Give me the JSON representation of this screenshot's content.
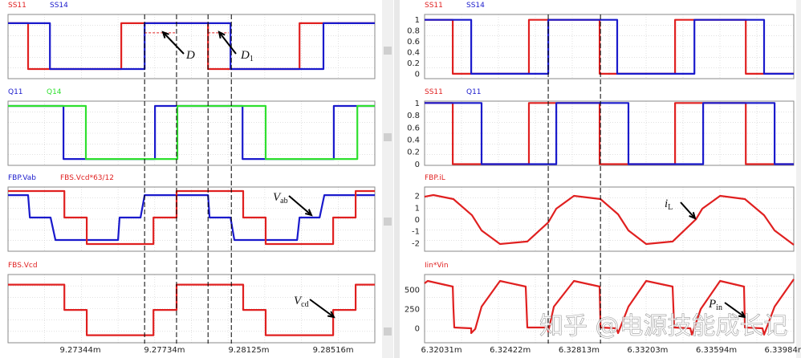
{
  "colors": {
    "red": "#e02020",
    "blue": "#1a1acc",
    "green": "#2fe02f",
    "grid": "#cfcfcf",
    "frame": "#8a8a8a"
  },
  "watermark": "知乎 @电源技能成长记",
  "chart_data": [
    {
      "side": "left",
      "type": "line",
      "xlim": [
        9.27009,
        9.28709
      ],
      "xticks": [
        9.27344,
        9.27734,
        9.28125,
        9.28516
      ],
      "xtick_labels": [
        "9.27344m",
        "9.27734m",
        "9.28125m",
        "9.28516m"
      ],
      "cursors": [
        9.27642,
        9.2779,
        9.27936,
        9.28044
      ],
      "panels": [
        {
          "ylim": [
            -0.21,
            1.19
          ],
          "yticks": [],
          "series": [
            {
              "name": "SS11",
              "color": "red",
              "step": true,
              "points": [
                [
                  9.27009,
                  1
                ],
                [
                  9.27102,
                  0
                ],
                [
                  9.27534,
                  1
                ],
                [
                  9.27936,
                  0
                ],
                [
                  9.2836,
                  1
                ]
              ]
            },
            {
              "name": "SS14",
              "color": "blue",
              "step": true,
              "points": [
                [
                  9.27009,
                  1
                ],
                [
                  9.27203,
                  0
                ],
                [
                  9.27642,
                  1
                ],
                [
                  9.2804,
                  0
                ],
                [
                  9.28471,
                  1
                ]
              ]
            }
          ],
          "dashed": [
            {
              "color": "red",
              "points": [
                [
                  9.27642,
                  0.79
                ],
                [
                  9.27783,
                  0.79
                ]
              ]
            },
            {
              "color": "red",
              "points": [
                [
                  9.27936,
                  0.79
                ],
                [
                  9.28032,
                  0.79
                ]
              ]
            }
          ],
          "annotations": [
            {
              "text": "D",
              "sub": ""
            },
            {
              "text": "D",
              "sub": "1"
            }
          ]
        },
        {
          "ylim": [
            -0.12,
            1.09
          ],
          "yticks": [],
          "series": [
            {
              "name": "Q11",
              "color": "blue",
              "step": true,
              "points": [
                [
                  9.27009,
                  1
                ],
                [
                  9.27266,
                  0
                ],
                [
                  9.2769,
                  1
                ],
                [
                  9.28096,
                  0
                ],
                [
                  9.28519,
                  1
                ]
              ]
            },
            {
              "name": "Q14",
              "color": "green",
              "step": true,
              "points": [
                [
                  9.27009,
                  1
                ],
                [
                  9.2737,
                  0
                ],
                [
                  9.27794,
                  1
                ],
                [
                  9.28203,
                  0
                ],
                [
                  9.28628,
                  1
                ]
              ]
            }
          ],
          "annotations": []
        },
        {
          "ylim": [
            -1.5,
            1.36
          ],
          "yticks": [],
          "series": [
            {
              "name": "FBP.Vab",
              "color": "blue",
              "step": false,
              "points": [
                [
                  9.27009,
                  1
                ],
                [
                  9.27102,
                  1
                ],
                [
                  9.2711,
                  0
                ],
                [
                  9.27206,
                  0
                ],
                [
                  9.27229,
                  -1
                ],
                [
                  9.27519,
                  -1
                ],
                [
                  9.27526,
                  0
                ],
                [
                  9.27623,
                  0
                ],
                [
                  9.27642,
                  1
                ],
                [
                  9.27936,
                  1
                ],
                [
                  9.27943,
                  0
                ],
                [
                  9.2804,
                  0
                ],
                [
                  9.28058,
                  -1
                ],
                [
                  9.28349,
                  -1
                ],
                [
                  9.2836,
                  0
                ],
                [
                  9.28453,
                  0
                ],
                [
                  9.28475,
                  1
                ],
                [
                  9.28709,
                  1
                ]
              ]
            },
            {
              "name": "FBS.Vcd*63/12",
              "color": "red",
              "step": true,
              "points": [
                [
                  9.27009,
                  1.18
                ],
                [
                  9.2727,
                  0
                ],
                [
                  9.27374,
                  -1.18
                ],
                [
                  9.27683,
                  0
                ],
                [
                  9.2779,
                  1.18
                ],
                [
                  9.28099,
                  0
                ],
                [
                  9.28203,
                  -1.18
                ],
                [
                  9.28516,
                  0
                ],
                [
                  9.2862,
                  1.18
                ]
              ]
            }
          ],
          "annotations": [
            {
              "text": "V",
              "sub": "ab"
            }
          ]
        },
        {
          "ylim": [
            -1.3,
            1.4
          ],
          "yticks": [],
          "series": [
            {
              "name": "FBS.Vcd",
              "color": "red",
              "step": true,
              "points": [
                [
                  9.27009,
                  1
                ],
                [
                  9.2727,
                  0
                ],
                [
                  9.27374,
                  -1
                ],
                [
                  9.27683,
                  0
                ],
                [
                  9.2779,
                  1
                ],
                [
                  9.28099,
                  0
                ],
                [
                  9.28203,
                  -1
                ],
                [
                  9.28516,
                  0
                ],
                [
                  9.2862,
                  1
                ]
              ]
            }
          ],
          "annotations": [
            {
              "text": "V",
              "sub": "cd"
            }
          ]
        }
      ]
    },
    {
      "side": "right",
      "type": "line",
      "xlim": [
        6.31935,
        6.34034
      ],
      "xticks": [
        6.32031,
        6.32422,
        6.32813,
        6.33203,
        6.33594,
        6.33984
      ],
      "xtick_labels": [
        "6.32031m",
        "6.32422m",
        "6.32813m",
        "6.33203m",
        "6.33594m",
        "6.33984m"
      ],
      "cursors": [
        6.32638,
        6.32935
      ],
      "panels": [
        {
          "ylim": [
            -0.09,
            1.1
          ],
          "yticks": [
            0,
            0.2,
            0.4,
            0.6,
            0.8,
            1
          ],
          "ytick_labels": [
            "0",
            "0.2",
            "0.4",
            "0.6",
            "0.8",
            "1"
          ],
          "series": [
            {
              "name": "SS11",
              "color": "red",
              "step": true,
              "points": [
                [
                  6.31935,
                  1
                ],
                [
                  6.32095,
                  0
                ],
                [
                  6.32528,
                  1
                ],
                [
                  6.3293,
                  0
                ],
                [
                  6.33359,
                  1
                ],
                [
                  6.33761,
                  0
                ]
              ]
            },
            {
              "name": "SS14",
              "color": "blue",
              "step": true,
              "points": [
                [
                  6.31935,
                  1
                ],
                [
                  6.322,
                  0
                ],
                [
                  6.32638,
                  1
                ],
                [
                  6.3303,
                  0
                ],
                [
                  6.33469,
                  1
                ],
                [
                  6.33865,
                  0
                ]
              ]
            }
          ],
          "annotations": []
        },
        {
          "ylim": [
            -0.02,
            1.03
          ],
          "yticks": [
            0,
            0.2,
            0.4,
            0.6,
            0.8,
            1
          ],
          "ytick_labels": [
            "0",
            "0.2",
            "0.4",
            "0.6",
            "0.8",
            "1"
          ],
          "series": [
            {
              "name": "SS11",
              "color": "red",
              "step": true,
              "points": [
                [
                  6.31935,
                  1
                ],
                [
                  6.32095,
                  0
                ],
                [
                  6.32528,
                  1
                ],
                [
                  6.3293,
                  0
                ],
                [
                  6.33359,
                  1
                ],
                [
                  6.33761,
                  0
                ]
              ]
            },
            {
              "name": "Q11",
              "color": "blue",
              "step": true,
              "points": [
                [
                  6.31935,
                  1
                ],
                [
                  6.32259,
                  0
                ],
                [
                  6.32684,
                  1
                ],
                [
                  6.33094,
                  0
                ],
                [
                  6.33519,
                  1
                ],
                [
                  6.33925,
                  0
                ]
              ]
            }
          ],
          "annotations": []
        },
        {
          "ylim": [
            -2.68,
            2.75
          ],
          "yticks": [
            -2,
            -1,
            0,
            1,
            2
          ],
          "ytick_labels": [
            "-2",
            "-1",
            "0",
            "1",
            "2"
          ],
          "series": [
            {
              "name": "FBP.iL",
              "color": "red",
              "step": false,
              "points": [
                [
                  6.31935,
                  1.93
                ],
                [
                  6.31985,
                  2.07
                ],
                [
                  6.32099,
                  1.73
                ],
                [
                  6.32204,
                  0.37
                ],
                [
                  6.32259,
                  -0.92
                ],
                [
                  6.32364,
                  -2.07
                ],
                [
                  6.32519,
                  -1.86
                ],
                [
                  6.32638,
                  -0.24
                ],
                [
                  6.32684,
                  0.92
                ],
                [
                  6.32784,
                  2.0
                ],
                [
                  6.32935,
                  1.73
                ],
                [
                  6.33035,
                  0.44
                ],
                [
                  6.33094,
                  -0.92
                ],
                [
                  6.33195,
                  -2.07
                ],
                [
                  6.33345,
                  -1.86
                ],
                [
                  6.33478,
                  0.03
                ],
                [
                  6.33514,
                  0.92
                ],
                [
                  6.33615,
                  2.0
                ],
                [
                  6.33756,
                  1.73
                ],
                [
                  6.33865,
                  0.37
                ],
                [
                  6.33925,
                  -0.92
                ],
                [
                  6.34034,
                  -2.14
                ]
              ]
            }
          ],
          "annotations": [
            {
              "text": "i",
              "sub": "L"
            }
          ]
        },
        {
          "ylim": [
            -188,
            698
          ],
          "yticks": [
            0,
            250,
            500
          ],
          "ytick_labels": [
            "0",
            "250",
            "500"
          ],
          "series": [
            {
              "name": "Iin*Vin",
              "color": "red",
              "step": false,
              "points": [
                [
                  6.31935,
                  583
                ],
                [
                  6.31953,
                  615
                ],
                [
                  6.32095,
                  542
                ],
                [
                  6.32099,
                  271
                ],
                [
                  6.32104,
                  10
                ],
                [
                  6.322,
                  0
                ],
                [
                  6.322,
                  -63
                ],
                [
                  6.32223,
                  -10
                ],
                [
                  6.32259,
                  281
                ],
                [
                  6.32364,
                  615
                ],
                [
                  6.3251,
                  542
                ],
                [
                  6.32519,
                  10
                ],
                [
                  6.32633,
                  10
                ],
                [
                  6.32638,
                  -42
                ],
                [
                  6.3267,
                  281
                ],
                [
                  6.32784,
                  615
                ],
                [
                  6.3293,
                  542
                ],
                [
                  6.32935,
                  10
                ],
                [
                  6.33026,
                  0
                ],
                [
                  6.33035,
                  -63
                ],
                [
                  6.33094,
                  281
                ],
                [
                  6.33195,
                  615
                ],
                [
                  6.33345,
                  542
                ],
                [
                  6.33354,
                  10
                ],
                [
                  6.33446,
                  0
                ],
                [
                  6.33455,
                  -83
                ],
                [
                  6.33505,
                  250
                ],
                [
                  6.33615,
                  615
                ],
                [
                  6.33751,
                  542
                ],
                [
                  6.33756,
                  10
                ],
                [
                  6.33856,
                  0
                ],
                [
                  6.33865,
                  -83
                ],
                [
                  6.33925,
                  281
                ],
                [
                  6.34034,
                  636
                ]
              ]
            }
          ],
          "annotations": [
            {
              "text": "P",
              "sub": "in"
            }
          ]
        }
      ]
    }
  ]
}
